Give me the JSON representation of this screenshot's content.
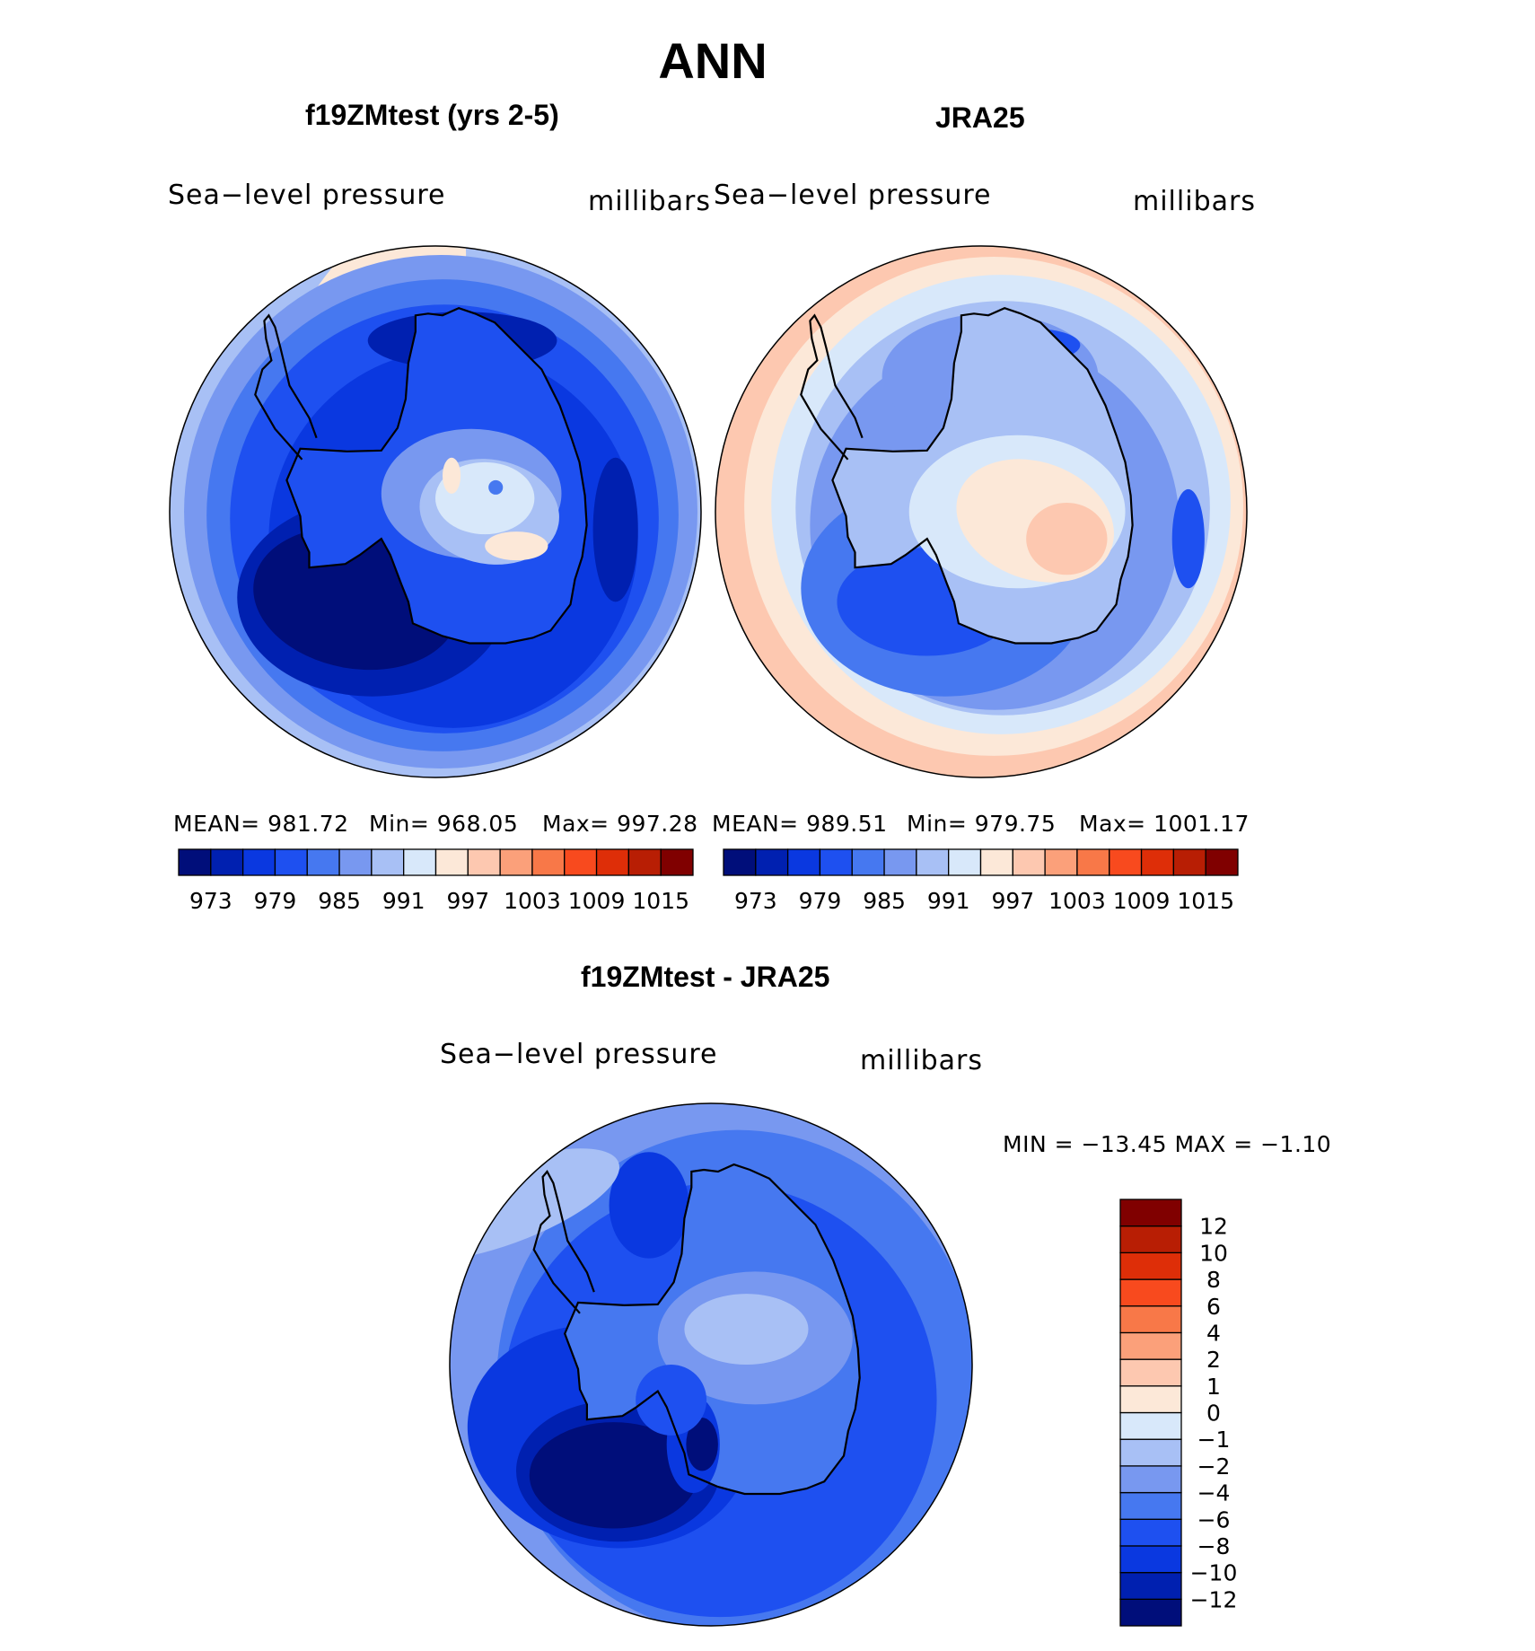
{
  "figure": {
    "title": "ANN"
  },
  "panels": [
    {
      "title": "f19ZMtest (yrs 2-5)",
      "variable": "Sea−level pressure",
      "units": "millibars",
      "stats": {
        "mean": "MEAN= 981.72",
        "min": "Min= 968.05",
        "max": "Max= 997.28"
      }
    },
    {
      "title": "JRA25",
      "variable": "Sea−level pressure",
      "units": "millibars",
      "stats": {
        "mean": "MEAN= 989.51",
        "min": "Min= 979.75",
        "max": "Max= 1001.17"
      }
    },
    {
      "title": "f19ZMtest - JRA25",
      "variable": "Sea−level pressure",
      "units": "millibars",
      "stats": {
        "minmax": "MIN = −13.45 MAX = −1.10"
      }
    }
  ],
  "chart_data": [
    {
      "type": "heatmap",
      "projection": "south polar stereographic",
      "title": "f19ZMtest (yrs 2-5)",
      "variable": "Sea−level pressure",
      "units": "millibars",
      "mean": 981.72,
      "min": 968.05,
      "max": 997.28,
      "colorbar": {
        "orientation": "horizontal",
        "levels": [
          973,
          976,
          979,
          982,
          985,
          988,
          991,
          994,
          997,
          1000,
          1003,
          1006,
          1009,
          1012,
          1015
        ],
        "tick_labels": [
          "973",
          "979",
          "985",
          "991",
          "997",
          "1003",
          "1009",
          "1015"
        ],
        "colors": [
          "#000e7a",
          "#0020b0",
          "#0a38e0",
          "#1e50f0",
          "#4678f0",
          "#7898f0",
          "#a8c0f5",
          "#d8e8fa",
          "#fce8d8",
          "#fdc8b0",
          "#fba07a",
          "#f87848",
          "#f84a1e",
          "#de2e08",
          "#b81e04",
          "#800000"
        ]
      }
    },
    {
      "type": "heatmap",
      "projection": "south polar stereographic",
      "title": "JRA25",
      "variable": "Sea−level pressure",
      "units": "millibars",
      "mean": 989.51,
      "min": 979.75,
      "max": 1001.17,
      "colorbar": {
        "orientation": "horizontal",
        "levels": [
          973,
          976,
          979,
          982,
          985,
          988,
          991,
          994,
          997,
          1000,
          1003,
          1006,
          1009,
          1012,
          1015
        ],
        "tick_labels": [
          "973",
          "979",
          "985",
          "991",
          "997",
          "1003",
          "1009",
          "1015"
        ],
        "colors": [
          "#000e7a",
          "#0020b0",
          "#0a38e0",
          "#1e50f0",
          "#4678f0",
          "#7898f0",
          "#a8c0f5",
          "#d8e8fa",
          "#fce8d8",
          "#fdc8b0",
          "#fba07a",
          "#f87848",
          "#f84a1e",
          "#de2e08",
          "#b81e04",
          "#800000"
        ]
      }
    },
    {
      "type": "heatmap",
      "projection": "south polar stereographic",
      "title": "f19ZMtest - JRA25",
      "variable": "Sea−level pressure",
      "units": "millibars",
      "min": -13.45,
      "max": -1.1,
      "colorbar": {
        "orientation": "vertical",
        "levels": [
          -12,
          -10,
          -8,
          -6,
          -4,
          -2,
          -1,
          0,
          1,
          2,
          4,
          6,
          8,
          10,
          12
        ],
        "tick_labels": [
          "−12",
          "−10",
          "−8",
          "−6",
          "−4",
          "−2",
          "−1",
          "0",
          "1",
          "2",
          "4",
          "6",
          "8",
          "10",
          "12"
        ],
        "colors": [
          "#000e7a",
          "#0020b0",
          "#0a38e0",
          "#1e50f0",
          "#4678f0",
          "#7898f0",
          "#a8c0f5",
          "#d8e8fa",
          "#fce8d8",
          "#fdc8b0",
          "#fba07a",
          "#f87848",
          "#f84a1e",
          "#de2e08",
          "#b81e04",
          "#800000"
        ]
      }
    }
  ]
}
